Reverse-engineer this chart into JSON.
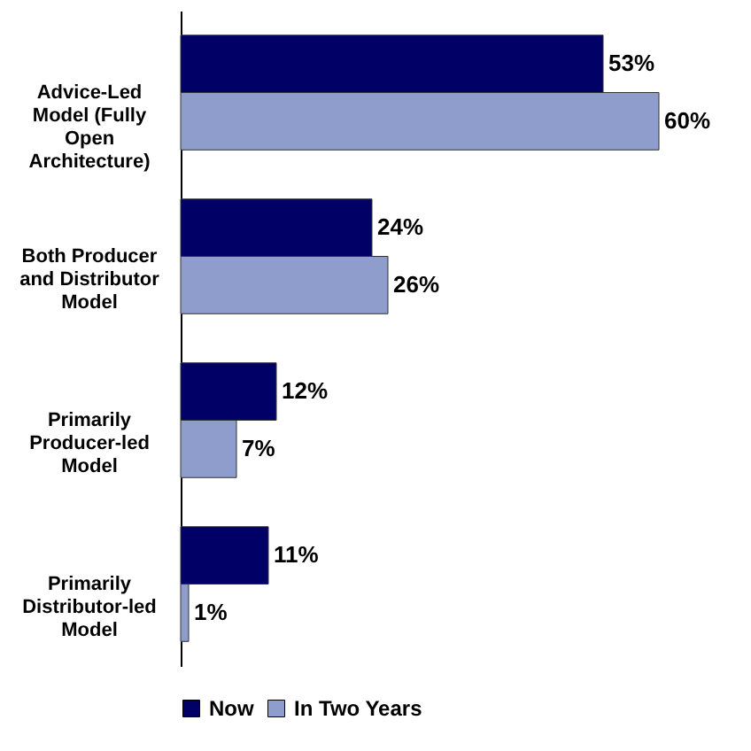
{
  "chart_data": {
    "type": "bar",
    "orientation": "horizontal",
    "legend": "bottom",
    "categories": [
      "Advice-Led Model (Fully Open Architecture)",
      "Both Producer and Distributor Model",
      "Primarily Producer-led Model",
      "Primarily Distributor-led Model"
    ],
    "series": [
      {
        "name": "Now",
        "color": "#000066",
        "values": [
          53,
          24,
          12,
          11
        ],
        "value_labels": [
          "53%",
          "24%",
          "12%",
          "11%"
        ]
      },
      {
        "name": "In Two Years",
        "color": "#8e9dcb",
        "values": [
          60,
          26,
          7,
          1
        ],
        "value_labels": [
          "60%",
          "26%",
          "7%",
          "1%"
        ]
      }
    ]
  }
}
